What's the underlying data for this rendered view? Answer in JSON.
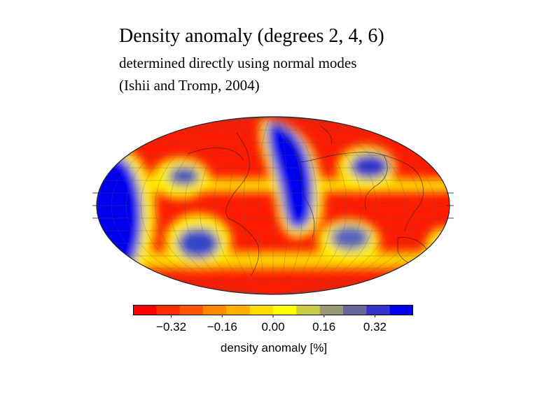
{
  "header": {
    "title": "Density anomaly (degrees 2, 4, 6)",
    "subtitle_line1": "determined directly using normal modes",
    "subtitle_line2": "(Ishii and Tromp, 2004)"
  },
  "map": {
    "projection": "Mollweide",
    "graticule": true,
    "coastlines": true
  },
  "colorbar": {
    "label": "density anomaly [%]",
    "ticks": [
      "−0.32",
      "−0.16",
      "0.00",
      "0.16",
      "0.32"
    ],
    "tick_values": [
      -0.32,
      -0.16,
      0.0,
      0.16,
      0.32
    ],
    "range": [
      -0.44,
      0.44
    ],
    "colors": [
      "#ff0000",
      "#ff2a00",
      "#ff5500",
      "#ff8800",
      "#ffb000",
      "#ffdd00",
      "#ffff00",
      "#cccc44",
      "#999977",
      "#666699",
      "#3333cc",
      "#0000ee"
    ]
  }
}
